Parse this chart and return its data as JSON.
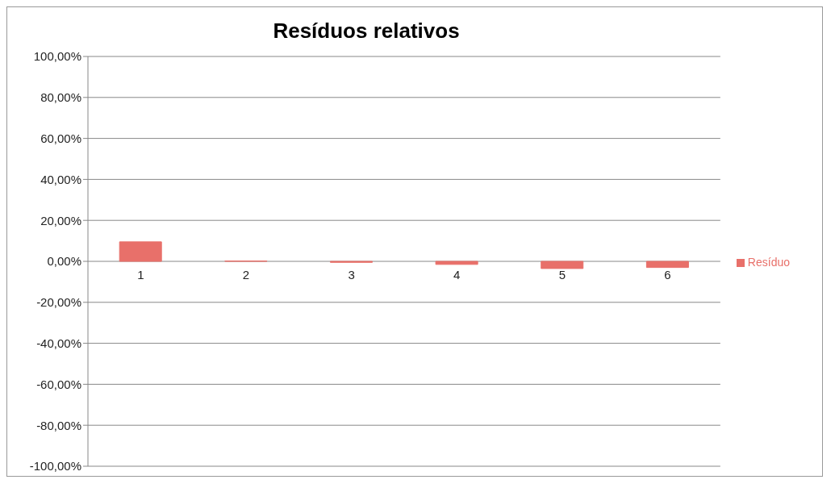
{
  "chart_data": {
    "type": "bar",
    "title": "Resíduos relativos",
    "categories": [
      "1",
      "2",
      "3",
      "4",
      "5",
      "6"
    ],
    "series": [
      {
        "name": "Resíduo",
        "color": "#e8706a",
        "values": [
          9.5,
          0.2,
          -0.5,
          -1.5,
          -3.5,
          -3
        ]
      }
    ],
    "ylim": [
      -100,
      100
    ],
    "yticks": [
      {
        "value": -100,
        "label": "-100,00%"
      },
      {
        "value": -80,
        "label": "-80,00%"
      },
      {
        "value": -60,
        "label": "-60,00%"
      },
      {
        "value": -40,
        "label": "-40,00%"
      },
      {
        "value": -20,
        "label": "-20,00%"
      },
      {
        "value": 0,
        "label": "0,00%"
      },
      {
        "value": 20,
        "label": "20,00%"
      },
      {
        "value": 40,
        "label": "40,00%"
      },
      {
        "value": 60,
        "label": "60,00%"
      },
      {
        "value": 80,
        "label": "80,00%"
      },
      {
        "value": 100,
        "label": "100,00%"
      }
    ],
    "grid": "y",
    "legend": "right"
  }
}
